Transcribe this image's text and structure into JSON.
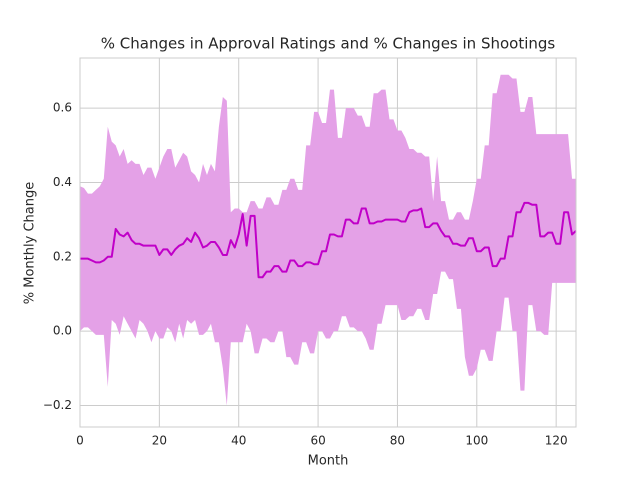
{
  "chart_data": {
    "type": "line",
    "title": "% Changes in Approval Ratings and % Changes in Shootings",
    "xlabel": "Month",
    "ylabel": "% Monthly Change",
    "grid": true,
    "xlim": [
      0,
      125
    ],
    "ylim": [
      -0.258,
      0.735
    ],
    "xticks": [
      0,
      20,
      40,
      60,
      80,
      100,
      120
    ],
    "yticks": [
      {
        "value": -0.2,
        "label": "−0.2"
      },
      {
        "value": 0,
        "label": "0.0"
      },
      0.2,
      0.4,
      0.6
    ],
    "x": [
      0,
      1,
      2,
      3,
      4,
      5,
      6,
      7,
      8,
      9,
      10,
      11,
      12,
      13,
      14,
      15,
      16,
      17,
      18,
      19,
      20,
      21,
      22,
      23,
      24,
      25,
      26,
      27,
      28,
      29,
      30,
      31,
      32,
      33,
      34,
      35,
      36,
      37,
      38,
      39,
      40,
      41,
      42,
      43,
      44,
      45,
      46,
      47,
      48,
      49,
      50,
      51,
      52,
      53,
      54,
      55,
      56,
      57,
      58,
      59,
      60,
      61,
      62,
      63,
      64,
      65,
      66,
      67,
      68,
      69,
      70,
      71,
      72,
      73,
      74,
      75,
      76,
      77,
      78,
      79,
      80,
      81,
      82,
      83,
      84,
      85,
      86,
      87,
      88,
      89,
      90,
      91,
      92,
      93,
      94,
      95,
      96,
      97,
      98,
      99,
      100,
      101,
      102,
      103,
      104,
      105,
      106,
      107,
      108,
      109,
      110,
      111,
      112,
      113,
      114,
      115,
      116,
      117,
      118,
      119,
      120,
      121,
      122,
      123,
      124,
      125
    ],
    "series": [
      {
        "color": "#c000c8",
        "band_color": "#e4a1e7",
        "values": [
          0.195,
          0.195,
          0.195,
          0.19,
          0.185,
          0.185,
          0.19,
          0.2,
          0.2,
          0.275,
          0.26,
          0.255,
          0.265,
          0.245,
          0.235,
          0.235,
          0.23,
          0.23,
          0.23,
          0.23,
          0.205,
          0.22,
          0.22,
          0.205,
          0.22,
          0.23,
          0.235,
          0.25,
          0.24,
          0.265,
          0.25,
          0.225,
          0.23,
          0.24,
          0.24,
          0.225,
          0.205,
          0.205,
          0.245,
          0.225,
          0.26,
          0.315,
          0.23,
          0.31,
          0.31,
          0.145,
          0.145,
          0.16,
          0.16,
          0.175,
          0.175,
          0.16,
          0.16,
          0.19,
          0.19,
          0.175,
          0.175,
          0.185,
          0.185,
          0.18,
          0.18,
          0.215,
          0.215,
          0.26,
          0.26,
          0.255,
          0.255,
          0.3,
          0.3,
          0.29,
          0.29,
          0.33,
          0.33,
          0.29,
          0.29,
          0.295,
          0.295,
          0.3,
          0.3,
          0.3,
          0.3,
          0.295,
          0.295,
          0.32,
          0.325,
          0.325,
          0.33,
          0.28,
          0.28,
          0.29,
          0.29,
          0.27,
          0.255,
          0.255,
          0.235,
          0.235,
          0.23,
          0.23,
          0.25,
          0.25,
          0.215,
          0.215,
          0.225,
          0.225,
          0.175,
          0.175,
          0.195,
          0.195,
          0.255,
          0.255,
          0.32,
          0.32,
          0.345,
          0.345,
          0.34,
          0.34,
          0.255,
          0.255,
          0.265,
          0.265,
          0.235,
          0.235,
          0.32,
          0.32,
          0.26,
          0.27
        ],
        "upper": [
          0.39,
          0.385,
          0.37,
          0.37,
          0.38,
          0.39,
          0.41,
          0.55,
          0.51,
          0.5,
          0.47,
          0.49,
          0.45,
          0.46,
          0.45,
          0.45,
          0.42,
          0.44,
          0.44,
          0.41,
          0.44,
          0.47,
          0.49,
          0.49,
          0.44,
          0.46,
          0.48,
          0.47,
          0.43,
          0.42,
          0.4,
          0.45,
          0.42,
          0.45,
          0.43,
          0.55,
          0.63,
          0.62,
          0.32,
          0.33,
          0.33,
          0.32,
          0.32,
          0.35,
          0.35,
          0.33,
          0.33,
          0.36,
          0.36,
          0.34,
          0.34,
          0.38,
          0.38,
          0.41,
          0.41,
          0.38,
          0.38,
          0.5,
          0.5,
          0.59,
          0.59,
          0.56,
          0.56,
          0.65,
          0.65,
          0.52,
          0.52,
          0.6,
          0.6,
          0.6,
          0.58,
          0.58,
          0.55,
          0.55,
          0.64,
          0.64,
          0.65,
          0.65,
          0.57,
          0.57,
          0.54,
          0.54,
          0.52,
          0.49,
          0.49,
          0.48,
          0.48,
          0.47,
          0.47,
          0.35,
          0.47,
          0.35,
          0.35,
          0.3,
          0.3,
          0.32,
          0.32,
          0.3,
          0.3,
          0.35,
          0.41,
          0.41,
          0.5,
          0.5,
          0.64,
          0.64,
          0.69,
          0.69,
          0.69,
          0.68,
          0.68,
          0.59,
          0.59,
          0.63,
          0.63,
          0.53,
          0.53,
          0.53,
          0.53,
          0.53,
          0.53,
          0.53,
          0.53,
          0.53,
          0.41,
          0.41
        ],
        "lower": [
          0,
          0.01,
          0.01,
          0,
          -0.01,
          -0.01,
          -0.01,
          -0.15,
          0.03,
          0.02,
          -0.01,
          0.04,
          0.02,
          0,
          -0.02,
          0.03,
          0.02,
          0,
          -0.03,
          0,
          -0.02,
          -0.02,
          0.01,
          0,
          -0.03,
          0.02,
          -0.02,
          0.03,
          0.02,
          0.03,
          -0.01,
          -0.01,
          0,
          0.02,
          -0.03,
          -0.03,
          -0.1,
          -0.2,
          -0.03,
          -0.03,
          -0.03,
          -0.03,
          0.02,
          0,
          -0.06,
          -0.06,
          -0.02,
          -0.02,
          -0.03,
          -0.03,
          0,
          0,
          -0.07,
          -0.07,
          -0.09,
          -0.09,
          -0.03,
          -0.03,
          -0.06,
          -0.06,
          0,
          0,
          -0.02,
          -0.02,
          0,
          0,
          0.04,
          0.04,
          0.01,
          0.01,
          0,
          0,
          -0.02,
          -0.05,
          -0.05,
          0.02,
          0.02,
          0.07,
          0.07,
          0.07,
          0.07,
          0.03,
          0.03,
          0.04,
          0.04,
          0.06,
          0.06,
          0.03,
          0.03,
          0.1,
          0.1,
          0.16,
          0.16,
          0.14,
          0.14,
          0.06,
          0.06,
          -0.07,
          -0.12,
          -0.12,
          -0.1,
          -0.05,
          -0.05,
          -0.08,
          -0.08,
          0,
          0,
          0.09,
          0.09,
          0,
          0,
          -0.16,
          -0.16,
          0.07,
          0.07,
          0,
          0,
          -0.01,
          -0.01,
          0.13,
          0.13,
          0.13,
          0.13,
          0.13,
          0.13,
          0.13
        ]
      }
    ]
  }
}
